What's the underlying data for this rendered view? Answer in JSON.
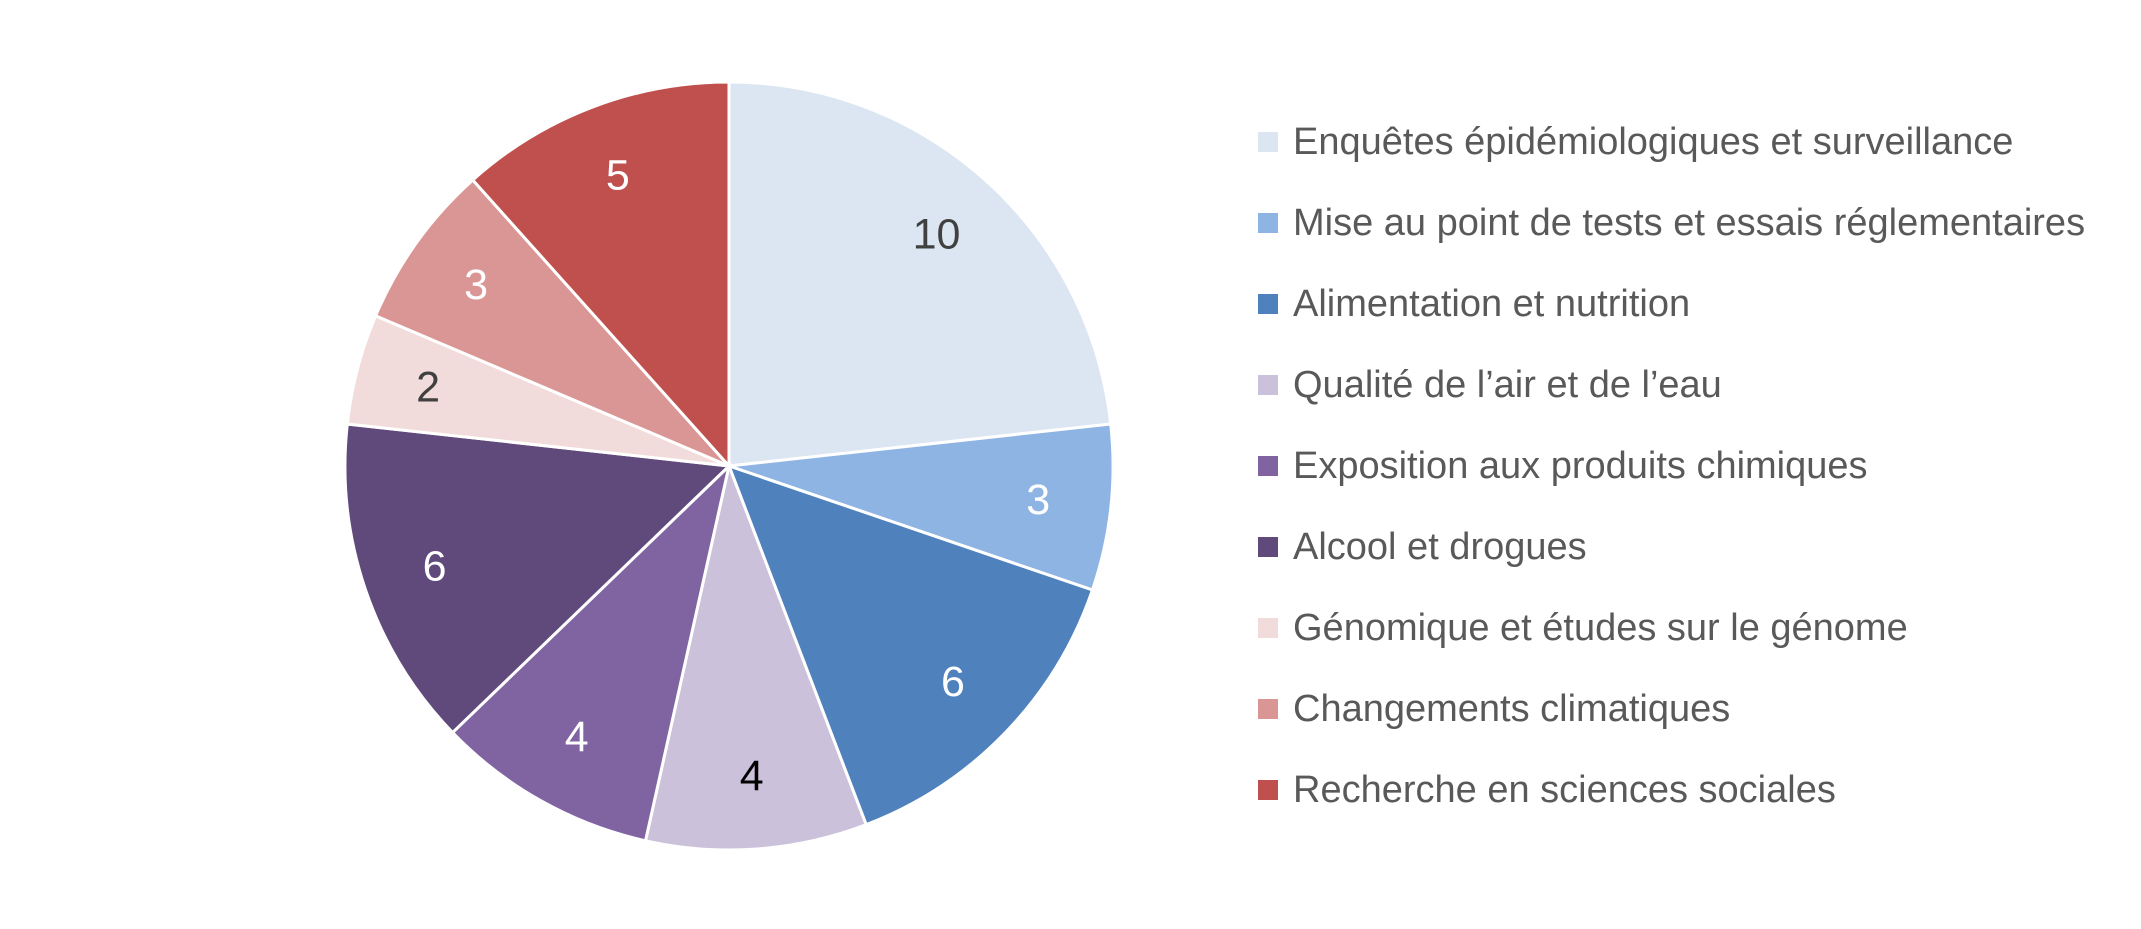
{
  "chart_data": {
    "type": "pie",
    "title": "",
    "legend_position": "right",
    "categories": [
      "Enquêtes épidémiologiques et surveillance",
      "Mise au point de tests et essais réglementaires",
      "Alimentation et nutrition",
      "Qualité de l’air et de l’eau",
      "Exposition aux produits chimiques",
      "Alcool et drogues",
      "Génomique et études sur le génome",
      "Changements climatiques",
      "Recherche en sciences sociales"
    ],
    "values": [
      10,
      3,
      6,
      4,
      4,
      6,
      2,
      3,
      5
    ],
    "colors": [
      "#DCE6F2",
      "#8EB4E3",
      "#4F81BD",
      "#CCC1DA",
      "#8064A2",
      "#604A7B",
      "#F2DCDB",
      "#D99694",
      "#C0504D"
    ],
    "label_colors": [
      "#404040",
      "#ffffff",
      "#ffffff",
      "#000000",
      "#ffffff",
      "#ffffff",
      "#404040",
      "#ffffff",
      "#ffffff"
    ]
  }
}
